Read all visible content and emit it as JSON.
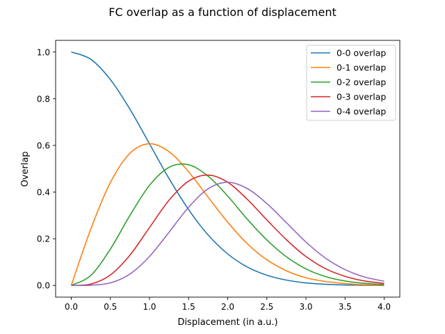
{
  "chart_data": {
    "type": "line",
    "title": "FC overlap as a function of displacement",
    "xlabel": "Displacement (in a.u.)",
    "ylabel": "Overlap",
    "xlim": [
      -0.2,
      4.2
    ],
    "ylim": [
      -0.05,
      1.05
    ],
    "x_ticks": [
      "0.0",
      "0.5",
      "1.0",
      "1.5",
      "2.0",
      "2.5",
      "3.0",
      "3.5",
      "4.0"
    ],
    "y_ticks": [
      "0.0",
      "0.2",
      "0.4",
      "0.6",
      "0.8",
      "1.0"
    ],
    "grid": false,
    "legend_position": "top-right",
    "x": [
      0.0,
      0.25,
      0.5,
      0.75,
      1.0,
      1.25,
      1.5,
      1.75,
      2.0,
      2.25,
      2.5,
      2.75,
      3.0,
      3.25,
      3.5,
      3.75,
      4.0
    ],
    "series": [
      {
        "name": "0-0 overlap",
        "color": "#1f77b4",
        "values": [
          1.0,
          0.969,
          0.882,
          0.755,
          0.607,
          0.458,
          0.325,
          0.216,
          0.135,
          0.079,
          0.044,
          0.023,
          0.011,
          0.005,
          0.002,
          0.001,
          0.0
        ]
      },
      {
        "name": "0-1 overlap",
        "color": "#ff7f0e",
        "values": [
          0.0,
          0.242,
          0.441,
          0.566,
          0.607,
          0.573,
          0.487,
          0.378,
          0.271,
          0.179,
          0.11,
          0.063,
          0.033,
          0.017,
          0.008,
          0.003,
          0.001
        ]
      },
      {
        "name": "0-2 overlap",
        "color": "#2ca02c",
        "values": [
          0.0,
          0.043,
          0.156,
          0.3,
          0.429,
          0.506,
          0.517,
          0.468,
          0.383,
          0.284,
          0.195,
          0.123,
          0.071,
          0.038,
          0.019,
          0.009,
          0.004
        ]
      },
      {
        "name": "0-3 overlap",
        "color": "#d62728",
        "values": [
          0.0,
          0.006,
          0.045,
          0.13,
          0.248,
          0.365,
          0.447,
          0.473,
          0.442,
          0.369,
          0.281,
          0.196,
          0.124,
          0.072,
          0.039,
          0.019,
          0.009
        ]
      },
      {
        "name": "0-4 overlap",
        "color": "#9467bd",
        "values": [
          0.0,
          0.001,
          0.011,
          0.049,
          0.124,
          0.228,
          0.335,
          0.414,
          0.442,
          0.415,
          0.351,
          0.269,
          0.186,
          0.117,
          0.068,
          0.036,
          0.018
        ]
      }
    ]
  }
}
